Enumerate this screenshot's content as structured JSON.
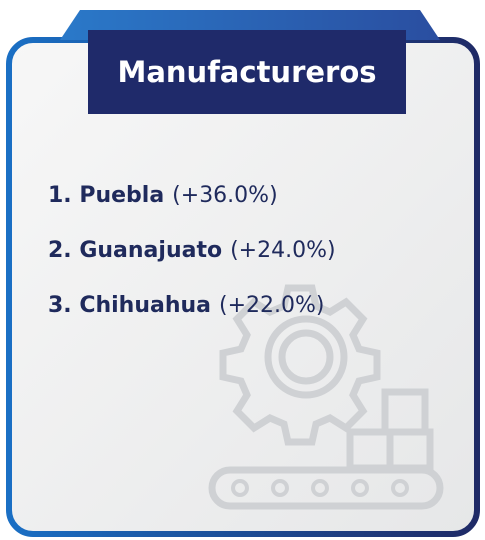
{
  "title": "Manufactureros",
  "items": [
    {
      "label": "1. Puebla",
      "change": "(+36.0%)"
    },
    {
      "label": "2. Guanajuato",
      "change": "(+24.0%)"
    },
    {
      "label": "3. Chihuahua",
      "change": "(+22.0%)"
    }
  ]
}
